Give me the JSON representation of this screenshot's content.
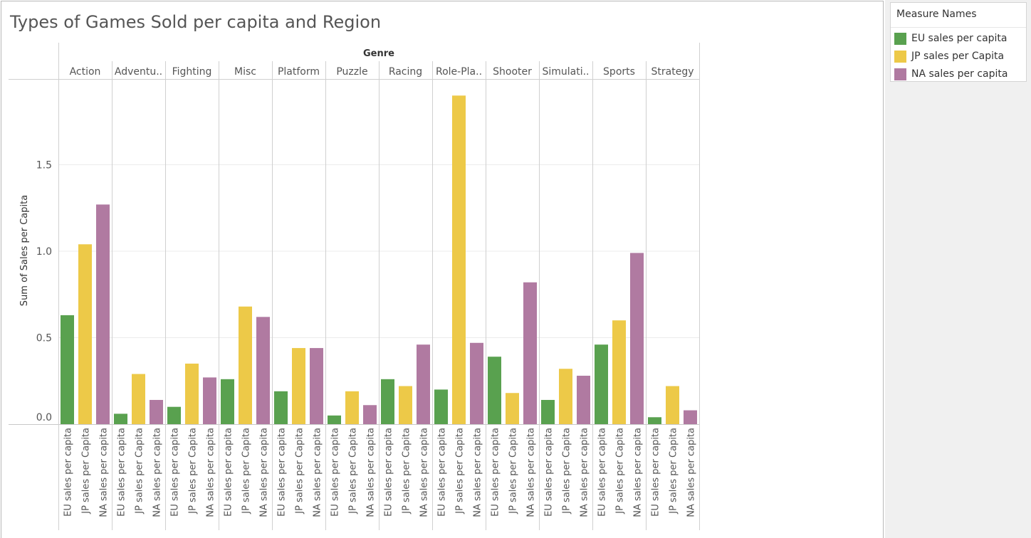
{
  "title": "Types of Games Sold per capita and Region",
  "legend": {
    "title": "Measure Names",
    "items": [
      {
        "label": "EU sales per capita",
        "color": "#59a14f"
      },
      {
        "label": "JP sales per Capita",
        "color": "#edc948"
      },
      {
        "label": "NA sales per capita",
        "color": "#b07aa1"
      }
    ]
  },
  "chart_data": {
    "type": "bar",
    "title": "Types of Games Sold per capita and Region",
    "column_header": "Genre",
    "ylabel": "Sum of Sales per Capita",
    "ylim": [
      0,
      1.95
    ],
    "yticks": [
      0.0,
      0.5,
      1.0,
      1.5
    ],
    "ytick_labels": [
      "0.0",
      "0.5",
      "1.0",
      "1.5"
    ],
    "grid": true,
    "legend_position": "top-right",
    "categories": [
      "Action",
      "Adventu..",
      "Fighting",
      "Misc",
      "Platform",
      "Puzzle",
      "Racing",
      "Role-Pla..",
      "Shooter",
      "Simulati..",
      "Sports",
      "Strategy"
    ],
    "series": [
      {
        "name": "EU sales per capita",
        "color": "#59a14f",
        "values": [
          0.63,
          0.06,
          0.1,
          0.26,
          0.19,
          0.05,
          0.26,
          0.2,
          0.39,
          0.14,
          0.46,
          0.04
        ]
      },
      {
        "name": "JP sales per Capita",
        "color": "#edc948",
        "values": [
          1.04,
          0.29,
          0.35,
          0.68,
          0.44,
          0.19,
          0.22,
          1.9,
          0.18,
          0.32,
          0.6,
          0.22
        ]
      },
      {
        "name": "NA sales per capita",
        "color": "#b07aa1",
        "values": [
          1.27,
          0.14,
          0.27,
          0.62,
          0.44,
          0.11,
          0.46,
          0.47,
          0.82,
          0.28,
          0.99,
          0.08
        ]
      }
    ]
  }
}
